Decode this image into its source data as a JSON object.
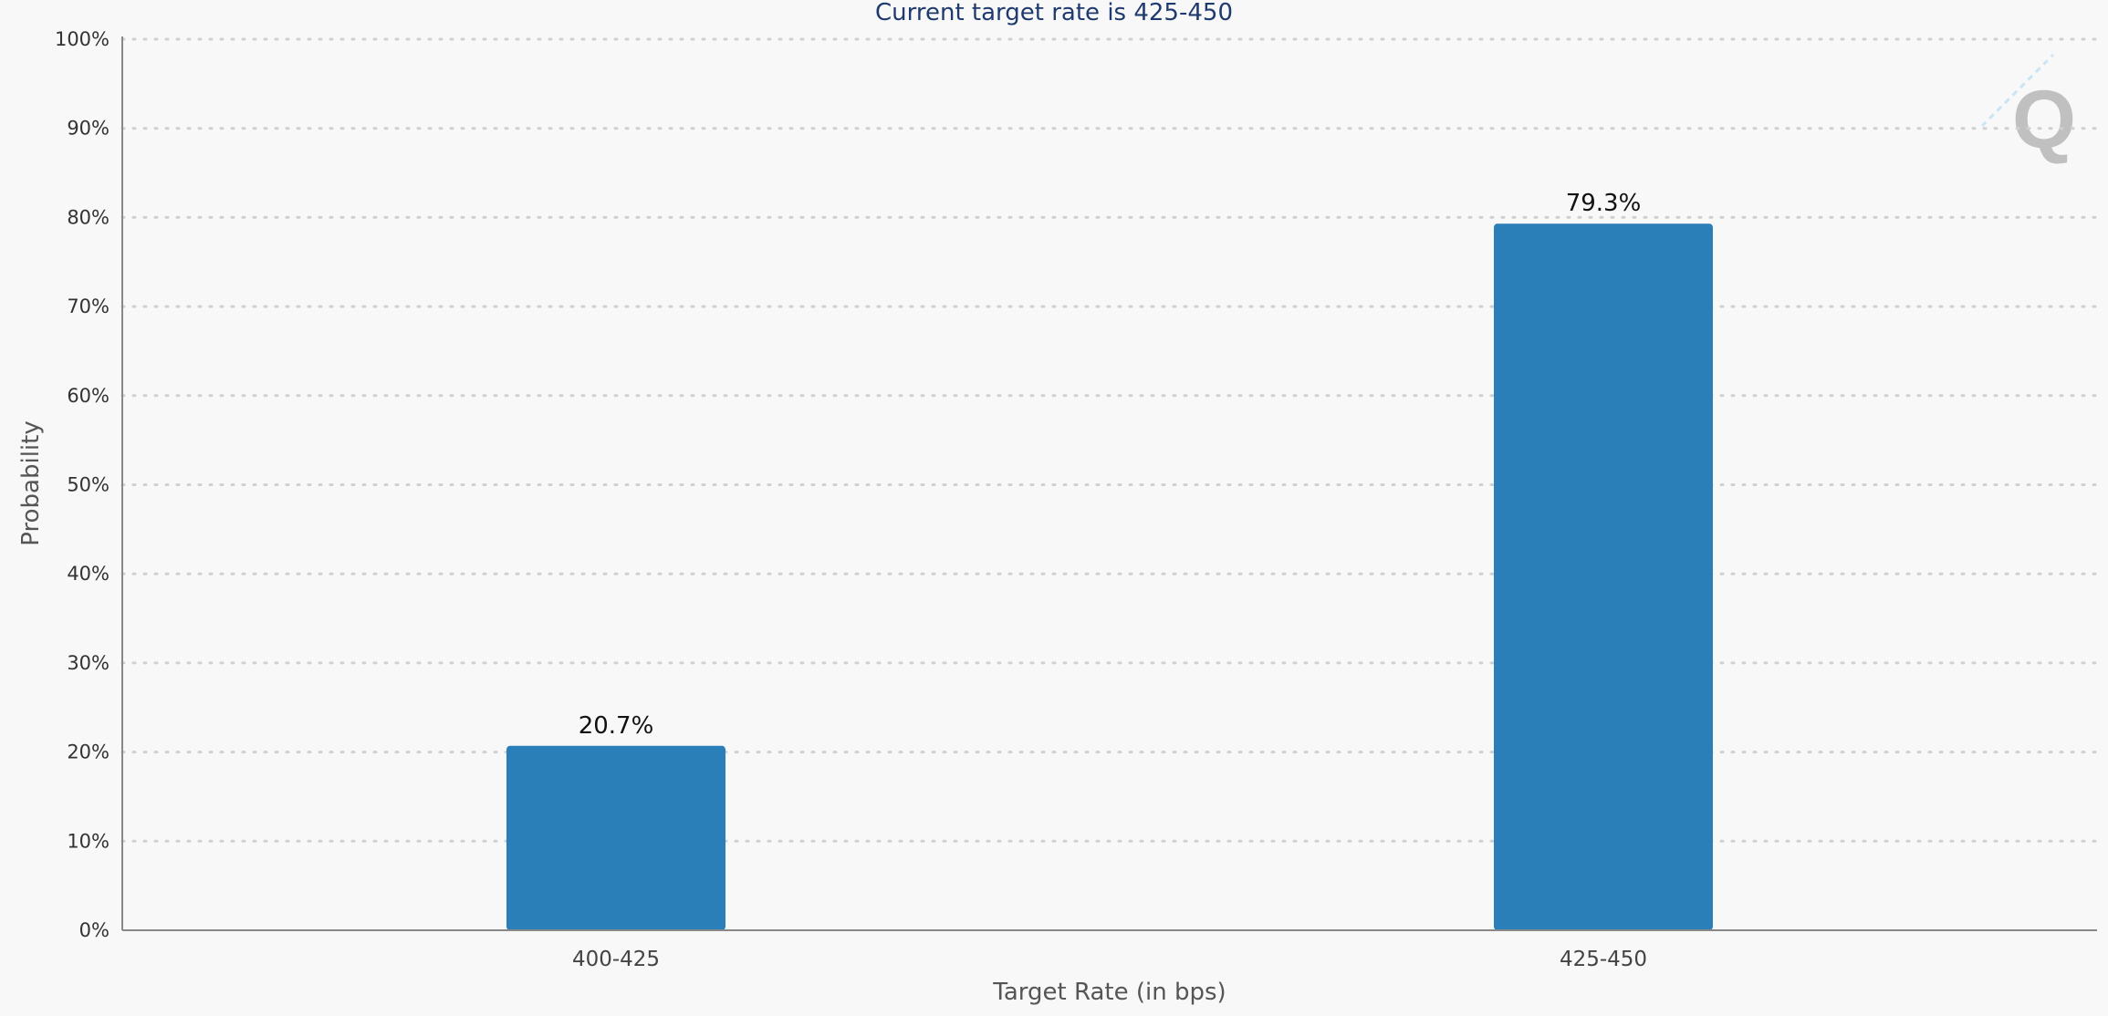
{
  "chart_data": {
    "type": "bar",
    "title": "Current target rate is 425-450",
    "xlabel": "Target Rate (in bps)",
    "ylabel": "Probability",
    "categories": [
      "400-425",
      "425-450"
    ],
    "values": [
      20.7,
      79.3
    ],
    "data_labels": [
      "20.7%",
      "79.3%"
    ],
    "ylim": [
      0,
      100
    ],
    "yticks": [
      0,
      10,
      20,
      30,
      40,
      50,
      60,
      70,
      80,
      90,
      100
    ],
    "ytick_labels": [
      "0%",
      "10%",
      "20%",
      "30%",
      "40%",
      "50%",
      "60%",
      "70%",
      "80%",
      "90%",
      "100%"
    ],
    "grid": true,
    "legend": "none",
    "bar_color": "#2a7fb8",
    "watermark_icon": "q-logo-icon"
  }
}
